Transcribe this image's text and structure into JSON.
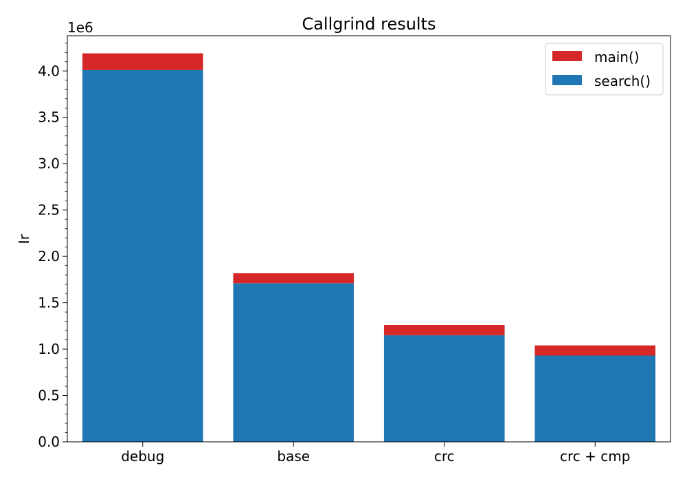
{
  "chart_data": {
    "type": "bar",
    "stacked": true,
    "title": "Callgrind results",
    "xlabel": "",
    "ylabel": "Ir",
    "categories": [
      "debug",
      "base",
      "crc",
      "crc + cmp"
    ],
    "series": [
      {
        "name": "search()",
        "color": "#1f77b4",
        "values": [
          4010000,
          1710000,
          1150000,
          930000
        ]
      },
      {
        "name": "main()",
        "color": "#d62728",
        "values": [
          180000,
          110000,
          110000,
          110000
        ]
      }
    ],
    "ylim": [
      0,
      4380000
    ],
    "yticks": [
      0,
      500000,
      1000000,
      1500000,
      2000000,
      2500000,
      3000000,
      3500000,
      4000000
    ],
    "ytick_labels": [
      "0.0",
      "0.5",
      "1.0",
      "1.5",
      "2.0",
      "2.5",
      "3.0",
      "3.5",
      "4.0"
    ],
    "y_offset_label": "1e6",
    "legend": {
      "placement": "top-right",
      "entries": [
        "main()",
        "search()"
      ]
    },
    "grid": false,
    "minor_ticks": true
  }
}
